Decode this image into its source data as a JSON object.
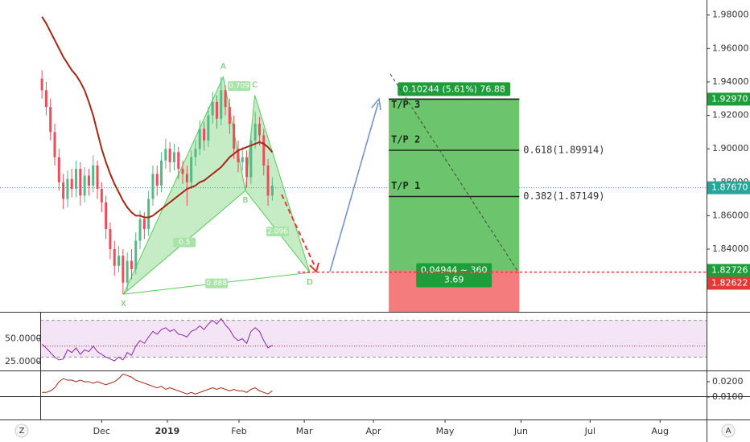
{
  "ui": {
    "left_button": "Z",
    "right_button": "A"
  },
  "chart_data": [
    {
      "type": "candlestick",
      "xlim": [
        -0.4,
        155.8
      ],
      "xticks": [
        {
          "value": 14,
          "label": "Dec"
        },
        {
          "value": 29.4,
          "label": "2019",
          "bold": true
        },
        {
          "value": 46.2,
          "label": "Feb"
        },
        {
          "value": 61.5,
          "label": "Mar"
        },
        {
          "value": 77.7,
          "label": "Apr"
        },
        {
          "value": 94.5,
          "label": "May"
        },
        {
          "value": 112.3,
          "label": "Jun"
        },
        {
          "value": 128.5,
          "label": "Jul"
        },
        {
          "value": 144.9,
          "label": "Aug"
        }
      ],
      "ylim": [
        1.8025,
        1.989
      ],
      "yticks": [
        {
          "value": 1.84,
          "label": "1.84000"
        },
        {
          "value": 1.86,
          "label": "1.86000"
        },
        {
          "value": 1.88,
          "label": "1.88000"
        },
        {
          "value": 1.9,
          "label": "1.90000"
        },
        {
          "value": 1.92,
          "label": "1.92000"
        },
        {
          "value": 1.94,
          "label": "1.94000"
        },
        {
          "value": 1.96,
          "label": "1.96000"
        },
        {
          "value": 1.98,
          "label": "1.98000"
        }
      ],
      "up_color": "#53b987",
      "down_color": "#eb4d5c",
      "open": [
        1.942,
        1.935,
        1.925,
        1.91,
        1.895,
        1.88,
        1.87,
        1.882,
        1.876,
        1.888,
        1.872,
        1.884,
        1.878,
        1.89,
        1.876,
        1.868,
        1.852,
        1.84,
        1.83,
        1.836,
        1.82,
        1.833,
        1.828,
        1.845,
        1.858,
        1.852,
        1.87,
        1.885,
        1.878,
        1.893,
        1.9,
        1.892,
        1.898,
        1.888,
        1.885,
        1.88,
        1.895,
        1.9,
        1.912,
        1.905,
        1.92,
        1.928,
        1.918,
        1.935,
        1.925,
        1.915,
        1.9,
        1.892,
        1.895,
        1.883,
        1.905,
        1.915,
        1.908,
        1.89,
        1.872
      ],
      "high": [
        1.947,
        1.94,
        1.93,
        1.915,
        1.9,
        1.885,
        1.887,
        1.888,
        1.893,
        1.892,
        1.889,
        1.888,
        1.896,
        1.893,
        1.88,
        1.872,
        1.856,
        1.845,
        1.842,
        1.84,
        1.838,
        1.84,
        1.85,
        1.863,
        1.862,
        1.875,
        1.89,
        1.89,
        1.898,
        1.906,
        1.904,
        1.903,
        1.901,
        1.893,
        1.89,
        1.899,
        1.905,
        1.917,
        1.916,
        1.925,
        1.934,
        1.932,
        1.943,
        1.938,
        1.93,
        1.92,
        1.905,
        1.901,
        1.899,
        1.91,
        1.922,
        1.919,
        1.912,
        1.894,
        1.883
      ],
      "low": [
        1.93,
        1.92,
        1.905,
        1.89,
        1.875,
        1.864,
        1.865,
        1.871,
        1.871,
        1.866,
        1.868,
        1.872,
        1.874,
        1.87,
        1.862,
        1.846,
        1.834,
        1.824,
        1.826,
        1.813,
        1.815,
        1.822,
        1.825,
        1.84,
        1.846,
        1.848,
        1.866,
        1.872,
        1.874,
        1.888,
        1.886,
        1.887,
        1.882,
        1.879,
        1.866,
        1.876,
        1.89,
        1.896,
        1.899,
        1.901,
        1.915,
        1.912,
        1.914,
        1.92,
        1.909,
        1.894,
        1.886,
        1.887,
        1.877,
        1.879,
        1.9,
        1.902,
        1.884,
        1.866,
        1.869
      ],
      "close": [
        1.935,
        1.925,
        1.91,
        1.895,
        1.88,
        1.87,
        1.882,
        1.876,
        1.888,
        1.872,
        1.884,
        1.878,
        1.89,
        1.876,
        1.868,
        1.852,
        1.84,
        1.83,
        1.836,
        1.82,
        1.833,
        1.828,
        1.845,
        1.858,
        1.852,
        1.87,
        1.885,
        1.878,
        1.893,
        1.9,
        1.892,
        1.898,
        1.888,
        1.885,
        1.88,
        1.895,
        1.9,
        1.912,
        1.905,
        1.92,
        1.928,
        1.918,
        1.935,
        1.925,
        1.915,
        1.9,
        1.892,
        1.895,
        1.883,
        1.905,
        1.915,
        1.908,
        1.89,
        1.872,
        1.878
      ],
      "ma": {
        "color": "#a52714",
        "values": [
          1.979,
          1.975,
          1.97,
          1.965,
          1.96,
          1.955,
          1.951,
          1.947,
          1.944,
          1.94,
          1.935,
          1.928,
          1.92,
          1.91,
          1.9,
          1.892,
          1.885,
          1.879,
          1.874,
          1.869,
          1.865,
          1.862,
          1.86,
          1.86,
          1.859,
          1.859,
          1.86,
          1.862,
          1.864,
          1.866,
          1.868,
          1.87,
          1.872,
          1.874,
          1.876,
          1.877,
          1.878,
          1.88,
          1.881,
          1.883,
          1.885,
          1.887,
          1.889,
          1.892,
          1.895,
          1.897,
          1.899,
          1.9,
          1.901,
          1.902,
          1.903,
          1.904,
          1.903,
          1.901,
          1.898
        ]
      },
      "current_price": {
        "value": 1.8767,
        "label": "1.87670",
        "color": "#26a69a"
      },
      "pattern": {
        "color": "#5cc85c",
        "points": [
          {
            "label": "X",
            "x": 19.1,
            "y": 1.813
          },
          {
            "label": "A",
            "x": 42.5,
            "y": 1.943
          },
          {
            "label": "B",
            "x": 47.7,
            "y": 1.875
          },
          {
            "label": "C",
            "x": 49.9,
            "y": 1.932
          },
          {
            "label": "D",
            "x": 62.8,
            "y": 1.826
          }
        ],
        "ratios": [
          0.709,
          0.5,
          2.096,
          0.888
        ]
      },
      "position": {
        "xrange": [
          81.3,
          111.9
        ],
        "profit_color": "#6cc46c",
        "loss_color": "#f47c7c",
        "label_color": "#1e9e3a",
        "target": {
          "value": 1.9297,
          "label": "1.92970"
        },
        "entry": {
          "value": 1.82726,
          "label": "1.82726"
        },
        "stop": {
          "value": 1.82622,
          "label": "1.82622",
          "color": "#e53935"
        },
        "target_text": "0.10244 (5.61%) 76.88",
        "entry_text": "0.04944 ~ 360",
        "ratio_text": "3.69",
        "levels": [
          {
            "name": "T/P 1",
            "value": 1.87149,
            "label": "0.382(1.87149)"
          },
          {
            "name": "T/P 2",
            "value": 1.89914,
            "label": "0.618(1.89914)"
          },
          {
            "name": "T/P 3",
            "value": 1.9297
          }
        ]
      }
    },
    {
      "type": "line",
      "color": "#8e24aa",
      "ylim": [
        16.4,
        78.4
      ],
      "yticks": [
        {
          "value": 50,
          "label": "50.0000"
        },
        {
          "value": 25,
          "label": "25.0000"
        }
      ],
      "band": [
        30,
        70
      ],
      "band_color": "#f3e5f5",
      "level": 42,
      "level_color": "#c62828",
      "values": [
        44,
        40,
        35,
        30,
        27,
        28,
        38,
        35,
        40,
        33,
        38,
        36,
        42,
        36,
        33,
        30,
        28,
        26,
        30,
        27,
        35,
        32,
        42,
        48,
        45,
        52,
        58,
        55,
        60,
        62,
        58,
        60,
        55,
        54,
        52,
        58,
        60,
        64,
        60,
        66,
        70,
        66,
        72,
        65,
        60,
        52,
        48,
        50,
        45,
        58,
        62,
        58,
        48,
        40,
        43
      ]
    },
    {
      "type": "line",
      "color": "#a52714",
      "ylim": [
        -0.0047,
        0.0268
      ],
      "yticks": [
        {
          "value": 0.02,
          "label": "0.0200"
        },
        {
          "value": 0.01,
          "label": "0.0100"
        }
      ],
      "values": [
        0.013,
        0.013,
        0.014,
        0.016,
        0.02,
        0.022,
        0.021,
        0.021,
        0.02,
        0.021,
        0.02,
        0.02,
        0.019,
        0.02,
        0.019,
        0.018,
        0.019,
        0.02,
        0.022,
        0.025,
        0.024,
        0.023,
        0.021,
        0.02,
        0.019,
        0.018,
        0.017,
        0.016,
        0.017,
        0.015,
        0.016,
        0.015,
        0.014,
        0.013,
        0.012,
        0.013,
        0.012,
        0.013,
        0.014,
        0.015,
        0.016,
        0.015,
        0.016,
        0.015,
        0.014,
        0.015,
        0.014,
        0.014,
        0.013,
        0.015,
        0.016,
        0.014,
        0.013,
        0.012,
        0.014
      ]
    }
  ]
}
